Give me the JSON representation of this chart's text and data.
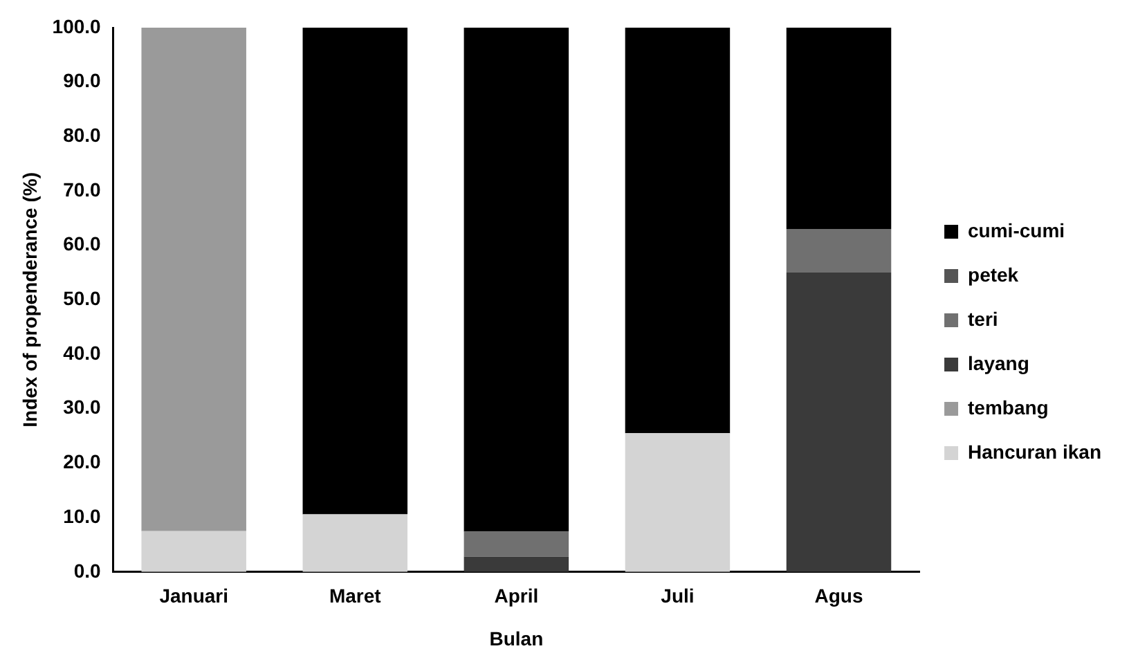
{
  "chart_data": {
    "type": "bar",
    "stacked": true,
    "xlabel": "Bulan",
    "ylabel": "Index of propenderance (%)",
    "categories": [
      "Januari",
      "Maret",
      "April",
      "Juli",
      "Agus"
    ],
    "series": [
      {
        "name": "Hancuran ikan",
        "color": "#d4d4d4",
        "values": [
          7.5,
          10.6,
          0,
          25.5,
          0
        ]
      },
      {
        "name": "tembang",
        "color": "#9a9a9a",
        "values": [
          92.5,
          0,
          0,
          0,
          0
        ]
      },
      {
        "name": "layang",
        "color": "#3a3a3a",
        "values": [
          0,
          0,
          2.8,
          0,
          55
        ]
      },
      {
        "name": "teri",
        "color": "#707070",
        "values": [
          0,
          0,
          4.6,
          0,
          8
        ]
      },
      {
        "name": "petek",
        "color": "#555555",
        "values": [
          0,
          0,
          0,
          0,
          0
        ]
      },
      {
        "name": "cumi-cumi",
        "color": "#000000",
        "values": [
          0,
          89.4,
          92.6,
          74.5,
          37
        ]
      }
    ],
    "ylim": [
      0,
      100
    ],
    "yticks": [
      {
        "value": 0,
        "label": "0.0"
      },
      {
        "value": 10,
        "label": "10.0"
      },
      {
        "value": 20,
        "label": "20.0"
      },
      {
        "value": 30,
        "label": "30.0"
      },
      {
        "value": 40,
        "label": "40.0"
      },
      {
        "value": 50,
        "label": "50.0"
      },
      {
        "value": 60,
        "label": "60.0"
      },
      {
        "value": 70,
        "label": "70.0"
      },
      {
        "value": 80,
        "label": "80.0"
      },
      {
        "value": 90,
        "label": "90.0"
      },
      {
        "value": 100,
        "label": "100.0"
      }
    ],
    "grid": false,
    "legend": "right"
  }
}
